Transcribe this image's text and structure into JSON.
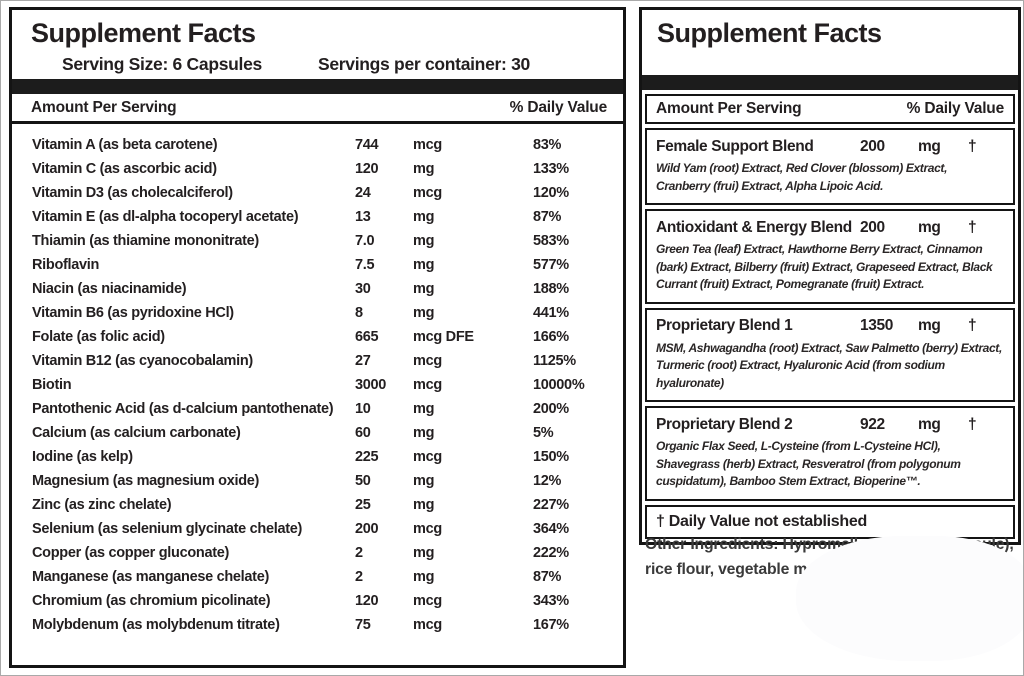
{
  "colors": {
    "panel_border": "#141414",
    "divider_bar": "#1c1c1c",
    "text": "#231f20"
  },
  "left_panel": {
    "title": "Supplement Facts",
    "serving_size_label": "Serving Size: 6 Capsules",
    "servings_per_container_label": "Servings per container: 30",
    "amount_header": "Amount Per Serving",
    "dv_header": "% Daily Value",
    "rows": [
      {
        "name": "Vitamin A (as beta carotene)",
        "amount": "744",
        "unit": "mcg",
        "dv": "83%"
      },
      {
        "name": "Vitamin C (as ascorbic acid)",
        "amount": "120",
        "unit": "mg",
        "dv": "133%"
      },
      {
        "name": "Vitamin D3 (as cholecalciferol)",
        "amount": "24",
        "unit": "mcg",
        "dv": "120%"
      },
      {
        "name": "Vitamin E (as dl-alpha tocoperyl acetate)",
        "amount": "13",
        "unit": "mg",
        "dv": "87%"
      },
      {
        "name": "Thiamin (as thiamine mononitrate)",
        "amount": "7.0",
        "unit": "mg",
        "dv": "583%"
      },
      {
        "name": "Riboflavin",
        "amount": "7.5",
        "unit": "mg",
        "dv": "577%"
      },
      {
        "name": "Niacin (as niacinamide)",
        "amount": "30",
        "unit": "mg",
        "dv": "188%"
      },
      {
        "name": "Vitamin B6 (as pyridoxine HCl)",
        "amount": "8",
        "unit": "mg",
        "dv": "441%"
      },
      {
        "name": "Folate (as folic acid)",
        "amount": "665",
        "unit": "mcg DFE",
        "dv": "166%"
      },
      {
        "name": "Vitamin B12 (as cyanocobalamin)",
        "amount": "27",
        "unit": "mcg",
        "dv": "1125%"
      },
      {
        "name": "Biotin",
        "amount": "3000",
        "unit": "mcg",
        "dv": "10000%"
      },
      {
        "name": "Pantothenic Acid (as d-calcium pantothenate)",
        "amount": "10",
        "unit": "mg",
        "dv": "200%"
      },
      {
        "name": "Calcium (as calcium carbonate)",
        "amount": "60",
        "unit": "mg",
        "dv": "5%"
      },
      {
        "name": "Iodine (as kelp)",
        "amount": "225",
        "unit": "mcg",
        "dv": "150%"
      },
      {
        "name": "Magnesium (as magnesium oxide)",
        "amount": "50",
        "unit": "mg",
        "dv": "12%"
      },
      {
        "name": "Zinc (as zinc chelate)",
        "amount": "25",
        "unit": "mg",
        "dv": "227%"
      },
      {
        "name": "Selenium (as selenium glycinate chelate)",
        "amount": "200",
        "unit": "mcg",
        "dv": "364%"
      },
      {
        "name": "Copper (as copper gluconate)",
        "amount": "2",
        "unit": "mg",
        "dv": "222%"
      },
      {
        "name": "Manganese (as manganese chelate)",
        "amount": "2",
        "unit": "mg",
        "dv": "87%"
      },
      {
        "name": "Chromium (as chromium picolinate)",
        "amount": "120",
        "unit": "mcg",
        "dv": "343%"
      },
      {
        "name": "Molybdenum (as molybdenum titrate)",
        "amount": "75",
        "unit": "mcg",
        "dv": "167%"
      }
    ]
  },
  "right_panel": {
    "title": "Supplement Facts",
    "amount_header": "Amount Per Serving",
    "dv_header": "% Daily Value",
    "blends": [
      {
        "name": "Female Support Blend",
        "amount": "200",
        "unit": "mg",
        "dv": "†",
        "ingredients": "Wild Yam (root) Extract, Red Clover (blossom) Extract, Cranberry (frui) Extract, Alpha Lipoic Acid."
      },
      {
        "name": "Antioxidant & Energy Blend",
        "amount": "200",
        "unit": "mg",
        "dv": "†",
        "ingredients": "Green Tea (leaf) Extract, Hawthorne Berry Extract, Cinnamon (bark) Extract, Bilberry (fruit) Extract, Grapeseed Extract, Black Currant (fruit) Extract, Pomegranate (fruit) Extract."
      },
      {
        "name": "Proprietary Blend 1",
        "amount": "1350",
        "unit": "mg",
        "dv": "†",
        "ingredients": "MSM, Ashwagandha (root) Extract, Saw Palmetto (berry) Extract, Turmeric (root) Extract, Hyaluronic Acid (from sodium hyaluronate)"
      },
      {
        "name": "Proprietary Blend 2",
        "amount": "922",
        "unit": "mg",
        "dv": "†",
        "ingredients": "Organic Flax Seed, L-Cysteine (from L-Cysteine HCl), Shavegrass (herb) Extract, Resveratrol (from polygonum cuspidatum), Bamboo Stem Extract, Bioperine™."
      }
    ],
    "footnote": "† Daily Value not established",
    "other_ingredients": "Other Ingredients: Hypromellose (veggie capsule), rice flour, vegetable magnesium stearate, silica."
  }
}
